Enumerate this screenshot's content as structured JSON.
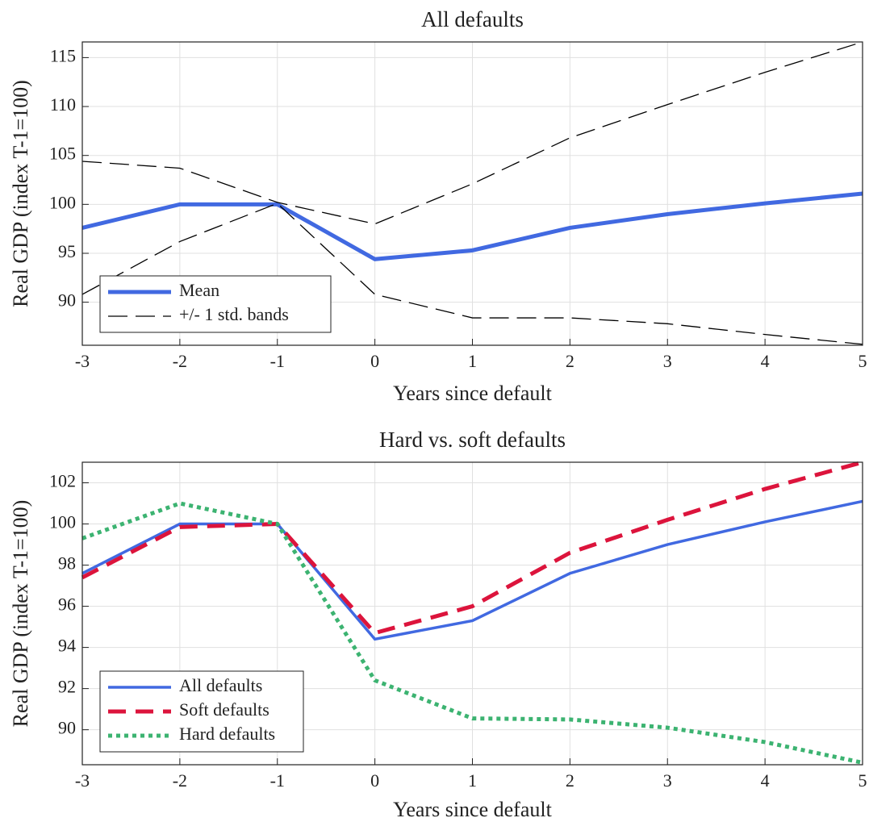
{
  "chart_data": [
    {
      "type": "line",
      "title": "All defaults",
      "xlabel": "Years since default",
      "ylabel": "Real GDP (index T-1=100)",
      "x": [
        -3,
        -2,
        -1,
        0,
        1,
        2,
        3,
        4,
        5
      ],
      "xlim": [
        -3,
        5
      ],
      "xticks": [
        -3,
        -2,
        -1,
        0,
        1,
        2,
        3,
        4,
        5
      ],
      "ylim": [
        85.6,
        116.6
      ],
      "yticks": [
        90,
        95,
        100,
        105,
        110,
        115
      ],
      "grid": true,
      "legend": "lower left",
      "series": [
        {
          "name": "Mean",
          "color": "#4169e1",
          "style": "solid",
          "width": 5,
          "values": [
            97.6,
            100,
            100,
            94.4,
            95.3,
            97.6,
            99.0,
            100.1,
            101.1
          ]
        },
        {
          "name": "+/- 1 std. bands",
          "color": "#000000",
          "style": "dashed",
          "width": 1.3,
          "upper": [
            104.4,
            103.7,
            100.2,
            98.0,
            102.1,
            106.8,
            110.2,
            113.5,
            116.6
          ],
          "lower": [
            90.8,
            96.2,
            100.1,
            90.8,
            88.4,
            88.4,
            87.8,
            86.7,
            85.7
          ]
        }
      ]
    },
    {
      "type": "line",
      "title": "Hard vs. soft defaults",
      "xlabel": "Years since default",
      "ylabel": "Real GDP (index T-1=100)",
      "x": [
        -3,
        -2,
        -1,
        0,
        1,
        2,
        3,
        4,
        5
      ],
      "xlim": [
        -3,
        5
      ],
      "xticks": [
        -3,
        -2,
        -1,
        0,
        1,
        2,
        3,
        4,
        5
      ],
      "ylim": [
        88.3,
        103
      ],
      "yticks": [
        90,
        92,
        94,
        96,
        98,
        100,
        102
      ],
      "grid": true,
      "legend": "lower left",
      "series": [
        {
          "name": "All defaults",
          "color": "#4169e1",
          "style": "solid",
          "width": 3.5,
          "values": [
            97.6,
            100,
            100,
            94.4,
            95.3,
            97.6,
            99.0,
            100.1,
            101.1
          ]
        },
        {
          "name": "Soft defaults",
          "color": "#dc143c",
          "style": "dashed",
          "width": 5,
          "values": [
            97.4,
            99.85,
            100,
            94.7,
            96.0,
            98.6,
            100.2,
            101.7,
            103.0
          ]
        },
        {
          "name": "Hard defaults",
          "color": "#3cb371",
          "style": "dotted",
          "width": 5,
          "values": [
            99.3,
            101.0,
            100.0,
            92.4,
            90.55,
            90.5,
            90.1,
            89.4,
            88.4
          ]
        }
      ]
    }
  ]
}
